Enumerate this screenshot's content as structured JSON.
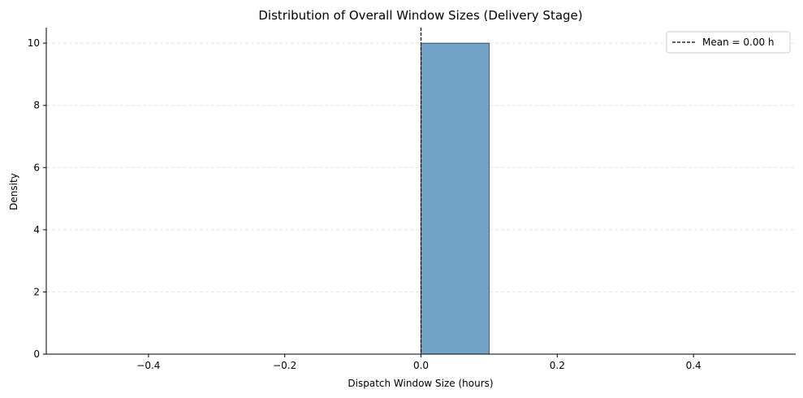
{
  "chart_data": {
    "type": "bar",
    "title": "Distribution of Overall Window Sizes (Delivery Stage)",
    "xlabel": "Dispatch Window Size (hours)",
    "ylabel": "Density",
    "xlim": [
      -0.55,
      0.55
    ],
    "ylim": [
      0,
      10.5
    ],
    "xticks": [
      -0.4,
      -0.2,
      0.0,
      0.2,
      0.4
    ],
    "xtick_labels": [
      "−0.4",
      "−0.2",
      "0.0",
      "0.2",
      "0.4"
    ],
    "yticks": [
      0,
      2,
      4,
      6,
      8,
      10
    ],
    "ytick_labels": [
      "0",
      "2",
      "4",
      "6",
      "8",
      "10"
    ],
    "bins": [
      {
        "x0": 0.0,
        "x1": 0.1,
        "value": 10
      }
    ],
    "mean_line": {
      "x": 0.0,
      "label": "Mean = 0.00 h"
    },
    "grid": "y-dashed",
    "legend_position": "top-right",
    "colors": {
      "bar_fill": "#74a3c8",
      "bar_edge": "#1f2f4f",
      "mean_line": "#000000",
      "grid": "#e3e3e3",
      "axis": "#000000"
    }
  }
}
